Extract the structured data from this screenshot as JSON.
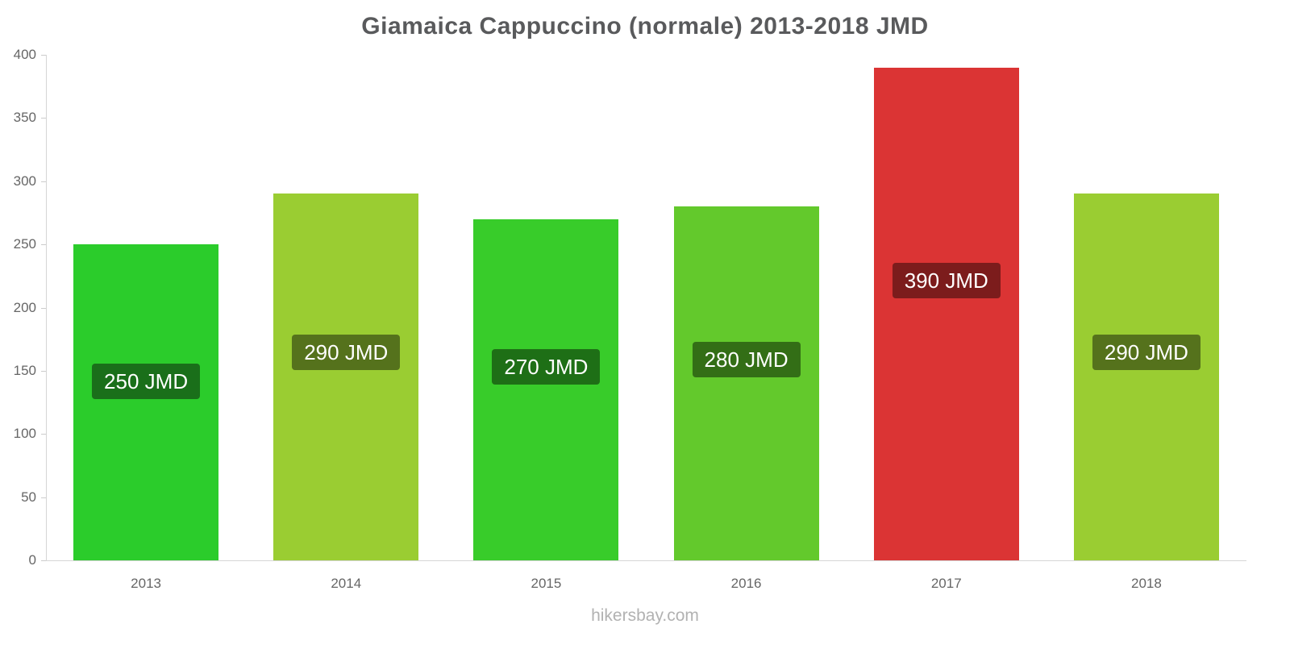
{
  "title": "Giamaica Cappuccino (normale) 2013-2018 JMD",
  "footer": "hikersbay.com",
  "chart_data": {
    "type": "bar",
    "title": "Giamaica Cappuccino (normale) 2013-2018 JMD",
    "categories": [
      "2013",
      "2014",
      "2015",
      "2016",
      "2017",
      "2018"
    ],
    "values": [
      250,
      290,
      270,
      280,
      390,
      290
    ],
    "labels": [
      "250 JMD",
      "290 JMD",
      "270 JMD",
      "280 JMD",
      "390 JMD",
      "290 JMD"
    ],
    "unit": "JMD",
    "bar_colors": [
      "#2bcc2b",
      "#9acd32",
      "#38cc2a",
      "#63c92c",
      "#db3434",
      "#9acd32"
    ],
    "label_box_colors": [
      "#1a6f1a",
      "#55721c",
      "#1e6f16",
      "#336e16",
      "#7c1c1c",
      "#55721c"
    ],
    "xlabel": "",
    "ylabel": "",
    "ylim": [
      0,
      400
    ],
    "yticks": [
      0,
      50,
      100,
      150,
      200,
      250,
      300,
      350,
      400
    ],
    "grid": false,
    "legend": false,
    "watermark": "hikersbay.com"
  }
}
